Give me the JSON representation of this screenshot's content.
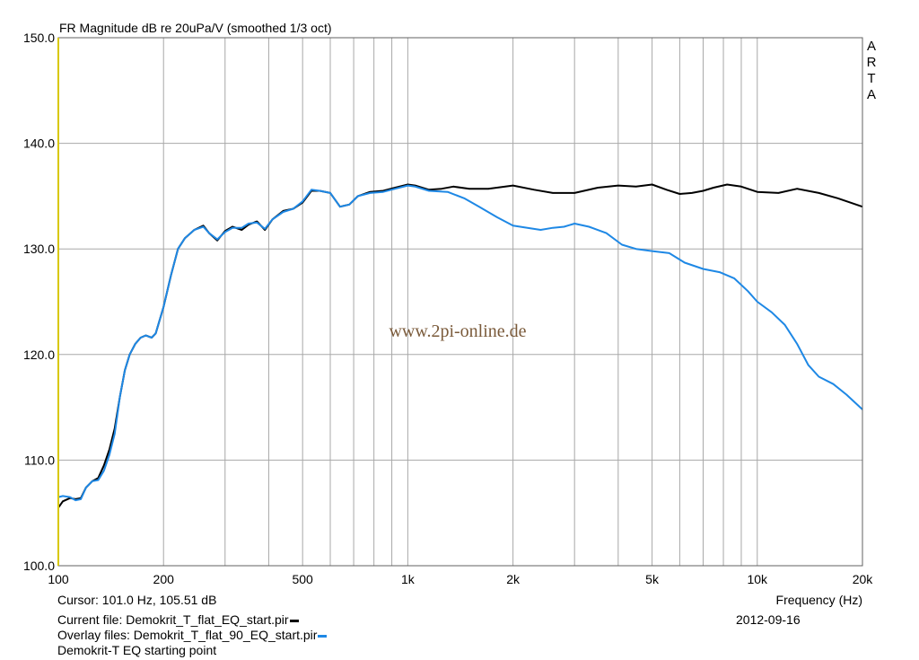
{
  "title": "FR Magnitude dB re 20uPa/V (smoothed 1/3 oct)",
  "brand_letters": [
    "A",
    "R",
    "T",
    "A"
  ],
  "watermark": "www.2pi-online.de",
  "footer": {
    "cursor": "Cursor: 101.0 Hz, 105.51 dB",
    "current_file": "Current file: Demokrit_T_flat_EQ_start.pir",
    "overlay_file": "Overlay files: Demokrit_T_flat_90_EQ_start.pir",
    "note": "Demokrit-T EQ starting point",
    "xlabel": "Frequency (Hz)",
    "date": "2012-09-16"
  },
  "colors": {
    "current": "#000000",
    "overlay": "#1e88e5",
    "grid": "#a8a8a8",
    "yaxis_left": "#d8c800"
  },
  "chart_data": {
    "type": "line",
    "title": "FR Magnitude dB re 20uPa/V (smoothed 1/3 oct)",
    "xlabel": "Frequency (Hz)",
    "ylabel": "",
    "x_scale": "log",
    "xlim": [
      100,
      20000
    ],
    "ylim": [
      100,
      150
    ],
    "grid": true,
    "x_tick_labels": [
      {
        "value": 100,
        "label": "100"
      },
      {
        "value": 200,
        "label": "200"
      },
      {
        "value": 500,
        "label": "500"
      },
      {
        "value": 1000,
        "label": "1k"
      },
      {
        "value": 2000,
        "label": "2k"
      },
      {
        "value": 5000,
        "label": "5k"
      },
      {
        "value": 10000,
        "label": "10k"
      },
      {
        "value": 20000,
        "label": "20k"
      }
    ],
    "y_ticks": [
      100,
      110,
      120,
      130,
      140,
      150
    ],
    "y_tick_labels": [
      "100.0",
      "110.0",
      "120.0",
      "130.0",
      "140.0",
      "150.0"
    ],
    "series": [
      {
        "name": "Demokrit_T_flat_EQ_start.pir",
        "color": "#000000",
        "points": [
          [
            100,
            105.5
          ],
          [
            103,
            106.1
          ],
          [
            108,
            106.4
          ],
          [
            112,
            106.3
          ],
          [
            116,
            106.4
          ],
          [
            120,
            107.4
          ],
          [
            125,
            108.0
          ],
          [
            130,
            108.3
          ],
          [
            135,
            109.5
          ],
          [
            140,
            111.0
          ],
          [
            145,
            113.0
          ],
          [
            150,
            116.0
          ],
          [
            155,
            118.5
          ],
          [
            160,
            120.0
          ],
          [
            166,
            121.0
          ],
          [
            172,
            121.6
          ],
          [
            178,
            121.8
          ],
          [
            185,
            121.6
          ],
          [
            190,
            122.0
          ],
          [
            200,
            124.5
          ],
          [
            210,
            127.5
          ],
          [
            220,
            130.0
          ],
          [
            230,
            131.0
          ],
          [
            245,
            131.8
          ],
          [
            260,
            132.2
          ],
          [
            270,
            131.5
          ],
          [
            285,
            130.8
          ],
          [
            300,
            131.7
          ],
          [
            315,
            132.1
          ],
          [
            335,
            131.8
          ],
          [
            350,
            132.3
          ],
          [
            370,
            132.6
          ],
          [
            390,
            131.8
          ],
          [
            410,
            132.8
          ],
          [
            440,
            133.6
          ],
          [
            470,
            133.8
          ],
          [
            500,
            134.4
          ],
          [
            530,
            135.5
          ],
          [
            560,
            135.5
          ],
          [
            600,
            135.3
          ],
          [
            640,
            134.0
          ],
          [
            680,
            134.2
          ],
          [
            720,
            135.0
          ],
          [
            780,
            135.4
          ],
          [
            850,
            135.5
          ],
          [
            920,
            135.8
          ],
          [
            1000,
            136.1
          ],
          [
            1050,
            136.0
          ],
          [
            1150,
            135.6
          ],
          [
            1250,
            135.7
          ],
          [
            1350,
            135.9
          ],
          [
            1500,
            135.7
          ],
          [
            1700,
            135.7
          ],
          [
            2000,
            136.0
          ],
          [
            2300,
            135.6
          ],
          [
            2600,
            135.3
          ],
          [
            3000,
            135.3
          ],
          [
            3500,
            135.8
          ],
          [
            4000,
            136.0
          ],
          [
            4500,
            135.9
          ],
          [
            5000,
            136.1
          ],
          [
            5500,
            135.6
          ],
          [
            6000,
            135.2
          ],
          [
            6500,
            135.3
          ],
          [
            7000,
            135.5
          ],
          [
            7500,
            135.8
          ],
          [
            8200,
            136.1
          ],
          [
            9000,
            135.9
          ],
          [
            10000,
            135.4
          ],
          [
            11500,
            135.3
          ],
          [
            13000,
            135.7
          ],
          [
            15000,
            135.3
          ],
          [
            17000,
            134.8
          ],
          [
            20000,
            134.0
          ]
        ]
      },
      {
        "name": "Demokrit_T_flat_90_EQ_start.pir",
        "color": "#1e88e5",
        "points": [
          [
            100,
            106.5
          ],
          [
            103,
            106.6
          ],
          [
            108,
            106.5
          ],
          [
            112,
            106.2
          ],
          [
            116,
            106.3
          ],
          [
            120,
            107.4
          ],
          [
            125,
            108.0
          ],
          [
            130,
            108.1
          ],
          [
            135,
            109.0
          ],
          [
            140,
            110.5
          ],
          [
            145,
            112.5
          ],
          [
            150,
            116.0
          ],
          [
            155,
            118.5
          ],
          [
            160,
            120.0
          ],
          [
            166,
            121.0
          ],
          [
            172,
            121.6
          ],
          [
            178,
            121.8
          ],
          [
            185,
            121.6
          ],
          [
            190,
            122.0
          ],
          [
            200,
            124.5
          ],
          [
            210,
            127.5
          ],
          [
            220,
            130.0
          ],
          [
            230,
            131.0
          ],
          [
            245,
            131.8
          ],
          [
            260,
            132.1
          ],
          [
            270,
            131.5
          ],
          [
            285,
            130.9
          ],
          [
            300,
            131.6
          ],
          [
            315,
            132.0
          ],
          [
            335,
            132.0
          ],
          [
            350,
            132.4
          ],
          [
            370,
            132.5
          ],
          [
            390,
            131.9
          ],
          [
            410,
            132.8
          ],
          [
            440,
            133.5
          ],
          [
            470,
            133.8
          ],
          [
            500,
            134.5
          ],
          [
            530,
            135.6
          ],
          [
            560,
            135.5
          ],
          [
            600,
            135.3
          ],
          [
            640,
            134.0
          ],
          [
            680,
            134.2
          ],
          [
            720,
            135.0
          ],
          [
            780,
            135.3
          ],
          [
            850,
            135.4
          ],
          [
            920,
            135.7
          ],
          [
            1000,
            136.0
          ],
          [
            1050,
            135.9
          ],
          [
            1150,
            135.5
          ],
          [
            1300,
            135.4
          ],
          [
            1450,
            134.8
          ],
          [
            1600,
            134.0
          ],
          [
            1800,
            133.0
          ],
          [
            2000,
            132.2
          ],
          [
            2200,
            132.0
          ],
          [
            2400,
            131.8
          ],
          [
            2600,
            132.0
          ],
          [
            2800,
            132.1
          ],
          [
            3000,
            132.4
          ],
          [
            3300,
            132.1
          ],
          [
            3700,
            131.5
          ],
          [
            4100,
            130.4
          ],
          [
            4500,
            130.0
          ],
          [
            5000,
            129.8
          ],
          [
            5600,
            129.6
          ],
          [
            6200,
            128.7
          ],
          [
            7000,
            128.1
          ],
          [
            7800,
            127.8
          ],
          [
            8600,
            127.2
          ],
          [
            9400,
            126.0
          ],
          [
            10000,
            125.0
          ],
          [
            11000,
            124.0
          ],
          [
            12000,
            122.8
          ],
          [
            13000,
            121.0
          ],
          [
            14000,
            119.0
          ],
          [
            15000,
            117.9
          ],
          [
            16500,
            117.2
          ],
          [
            18000,
            116.2
          ],
          [
            20000,
            114.8
          ]
        ]
      }
    ]
  }
}
